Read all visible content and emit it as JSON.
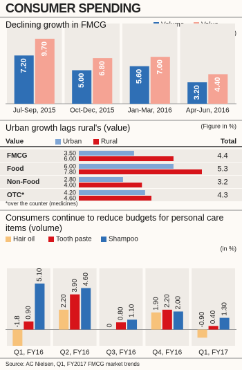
{
  "title": "CONSUMER SPENDING",
  "source": "Source: AC Nielsen, Q1, FY2017 FMCG market trends",
  "chart_data": [
    {
      "type": "bar",
      "title": "Declining growth in FMCG",
      "unit_note": "(in %)",
      "categories": [
        "Jul-Sep, 2015",
        "Oct-Dec, 2015",
        "Jan-Mar, 2016",
        "Apr-Jun, 2016"
      ],
      "series": [
        {
          "name": "Volume",
          "color": "#2f6fb5",
          "values": [
            7.2,
            5,
            5.6,
            3.2
          ],
          "value_labels": [
            "7.20",
            "5.00",
            "5.60",
            "3.20"
          ]
        },
        {
          "name": "Value",
          "color": "#f5a394",
          "values": [
            9.7,
            6.8,
            7,
            4.4
          ],
          "value_labels": [
            "9.70",
            "6.80",
            "7.00",
            "4.40"
          ]
        }
      ]
    },
    {
      "type": "hbar",
      "title": "Urban growth lags rural's (value)",
      "unit_note": "(Figure in %)",
      "category_header": "Value",
      "total_header": "Total",
      "categories": [
        "FMCG",
        "Food",
        "Non-Food",
        "OTC*"
      ],
      "series": [
        {
          "name": "Urban",
          "color": "#7fa6d6",
          "values": [
            3.5,
            6,
            2.8,
            4.2
          ],
          "value_labels": [
            "3.50",
            "6.00",
            "2.80",
            "4.20"
          ]
        },
        {
          "name": "Rural",
          "color": "#d7141a",
          "values": [
            6,
            7.8,
            4,
            4.6
          ],
          "value_labels": [
            "6.00",
            "7.80",
            "4.00",
            "4.60"
          ]
        }
      ],
      "totals": [
        4.4,
        5.3,
        3.2,
        4.3
      ],
      "footnote": "*over the counter (medicines)"
    },
    {
      "type": "bar",
      "title": "Consumers continue to reduce budgets for personal care items (volume)",
      "unit_note": "(in %)",
      "categories": [
        "Q1, FY16",
        "Q2, FY16",
        "Q3, FY16",
        "Q4, FY16",
        "Q1, FY17"
      ],
      "series": [
        {
          "name": "Hair oil",
          "color": "#f7c27a",
          "values": [
            -1.8,
            2.2,
            0,
            1.9,
            -0.9
          ],
          "value_labels": [
            "-1.8",
            "2.20",
            "0",
            "1.90",
            "-0.90"
          ]
        },
        {
          "name": "Tooth paste",
          "color": "#d7141a",
          "values": [
            0.9,
            3.9,
            0.8,
            2.2,
            0.4
          ],
          "value_labels": [
            "0.90",
            "3.90",
            "0.80",
            "2.20",
            "0.40"
          ]
        },
        {
          "name": "Shampoo",
          "color": "#2f6fb5",
          "values": [
            5.1,
            4.6,
            1.1,
            2.0,
            1.3
          ],
          "value_labels": [
            "5.10",
            "4.60",
            "1.10",
            "2.00",
            "1.30"
          ]
        }
      ]
    }
  ]
}
